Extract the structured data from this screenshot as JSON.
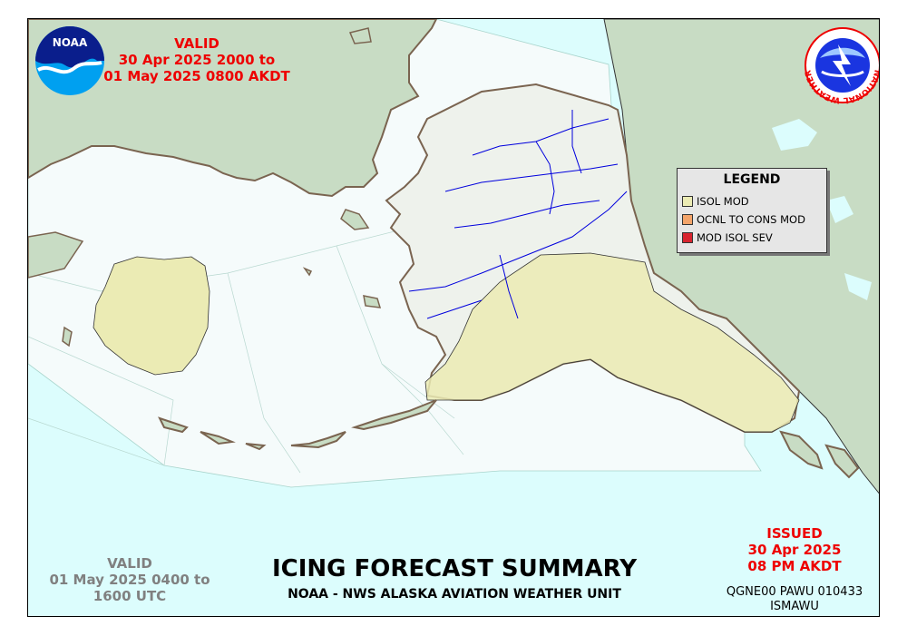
{
  "valid_local": {
    "label": "VALID",
    "from": "30 Apr 2025 2000 to",
    "to": "01 May 2025 0800 AKDT"
  },
  "valid_utc": {
    "label": "VALID",
    "from": "01 May 2025 0400 to",
    "to": "1600 UTC"
  },
  "title": "ICING FORECAST SUMMARY",
  "subtitle": "NOAA - NWS ALASKA AVIATION WEATHER UNIT",
  "issued": {
    "label": "ISSUED",
    "date": "30 Apr 2025",
    "time": "08 PM AKDT"
  },
  "product_code": "QGNE00 PAWU 010433",
  "product_id": "ISMAWU",
  "noaa_logo_text": "NOAA",
  "nws_logo_text": "NATIONAL WEATHER SERVICE",
  "legend": {
    "title": "LEGEND",
    "items": [
      {
        "label": "ISOL MOD",
        "color": "#ebebb4"
      },
      {
        "label": "OCNL TO CONS MOD",
        "color": "#f4a46a"
      },
      {
        "label": "MOD ISOL SEV",
        "color": "#d8232f"
      }
    ]
  },
  "colors": {
    "ocean": "#dcfdfd",
    "land": "#c8dcc4",
    "alaska": "#eef2ec",
    "coast": "#7a6450",
    "rivers": "#0000dd",
    "forecast_area": "#f5fbfb"
  }
}
